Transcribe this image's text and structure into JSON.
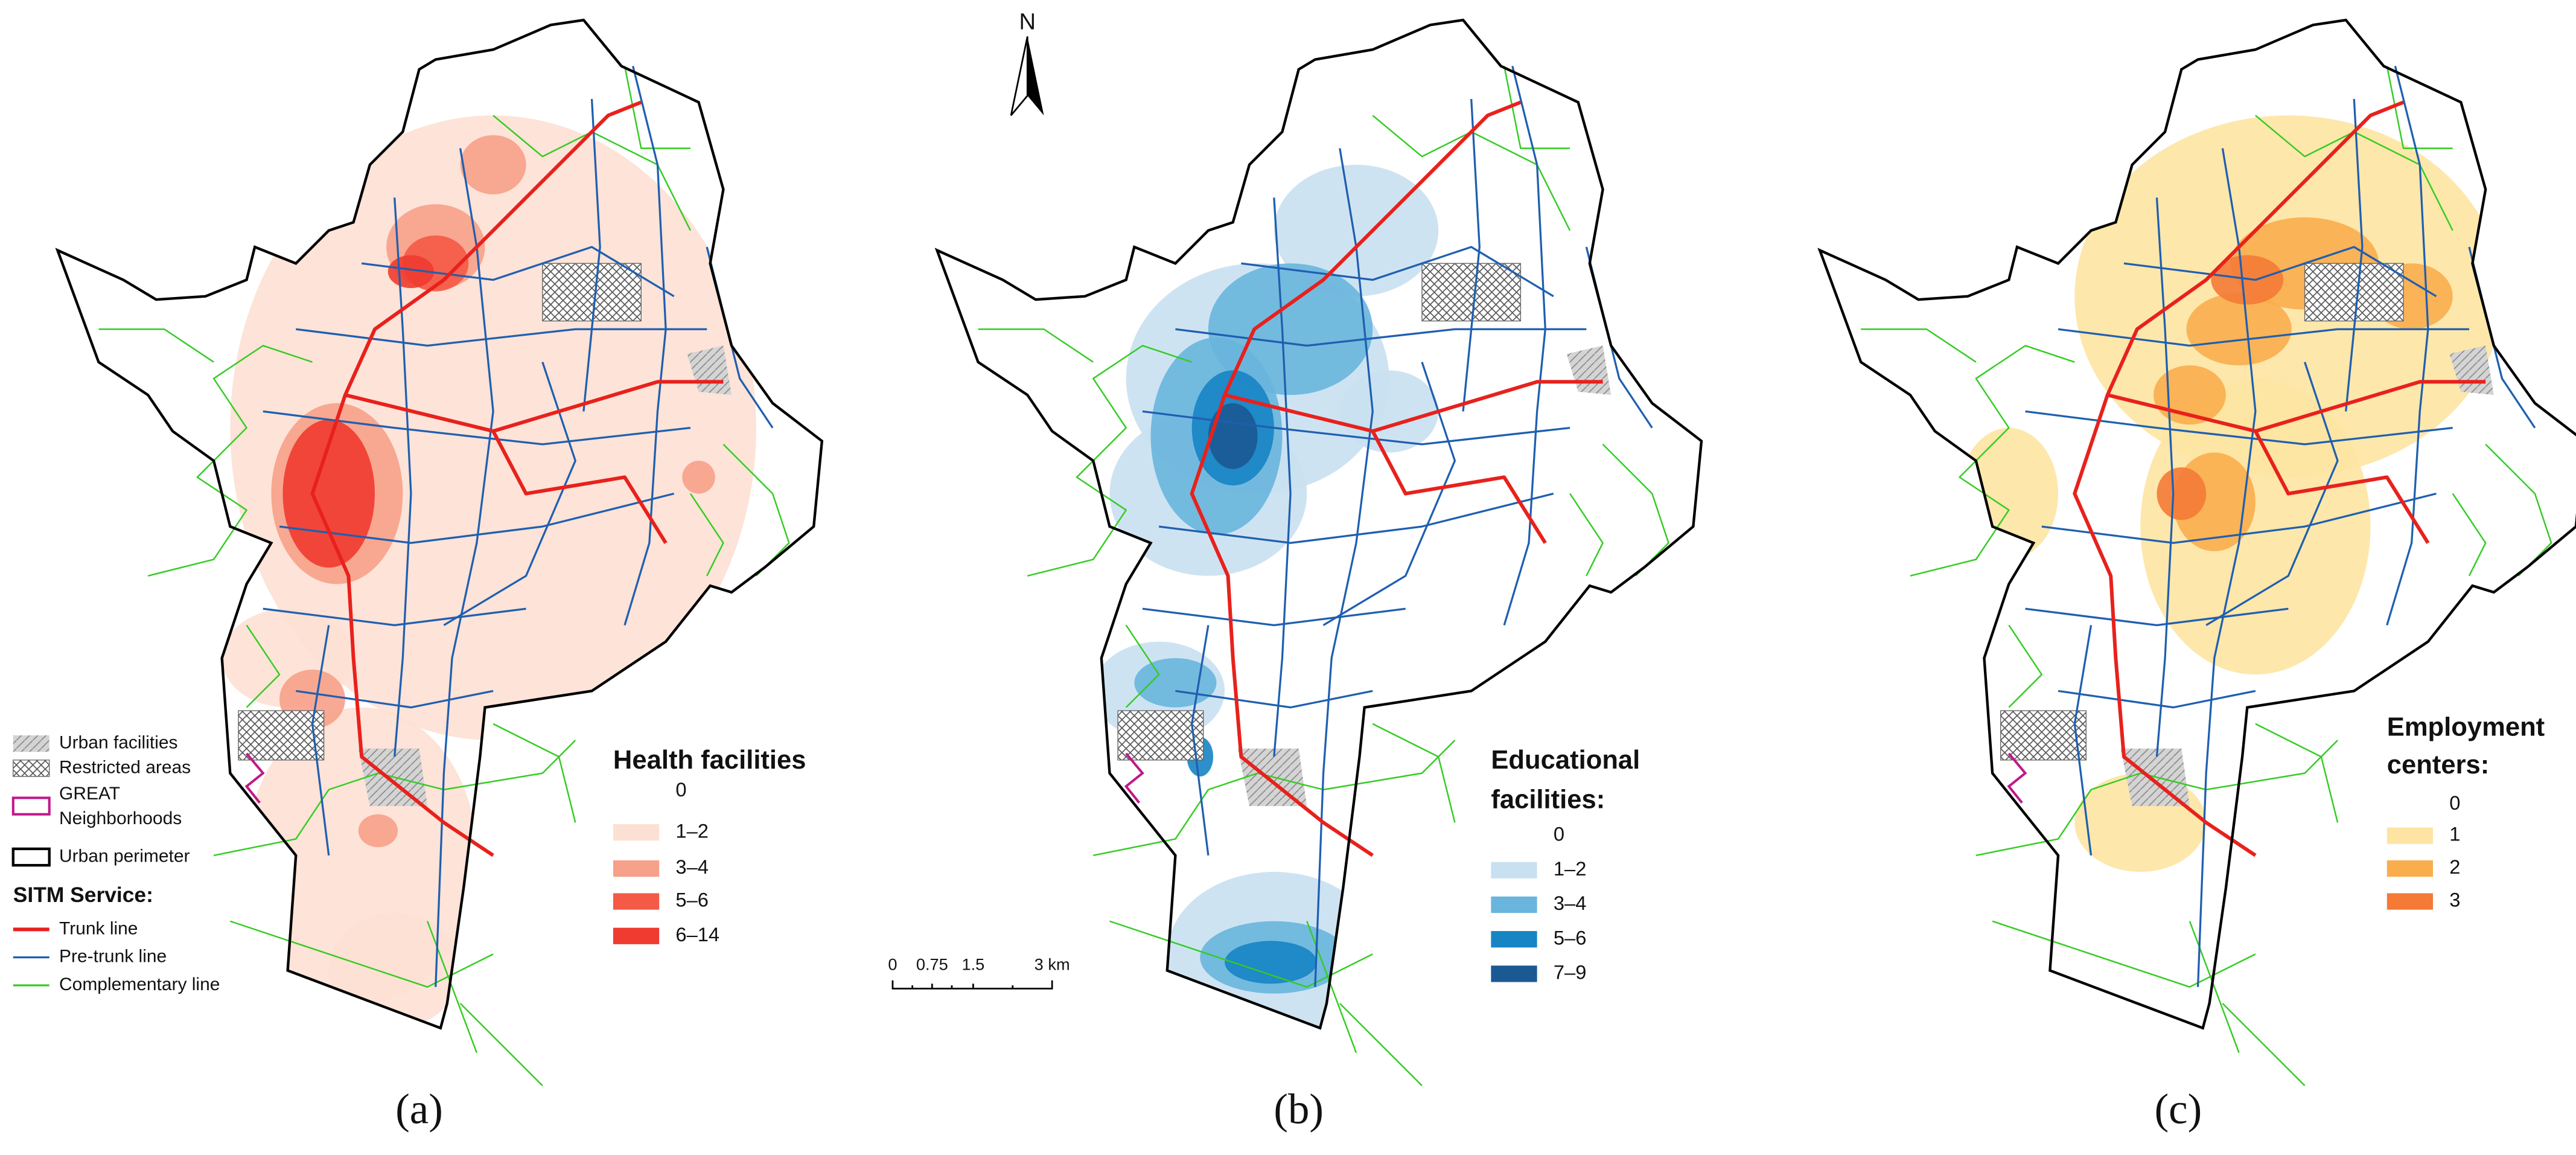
{
  "north_arrow": "N",
  "scale_bar": {
    "labels": [
      "0",
      "0.75",
      "1.5",
      "3 km"
    ]
  },
  "map_legend": {
    "items": [
      {
        "label": [
          "Urban facilities"
        ]
      },
      {
        "label": [
          "Restricted areas"
        ]
      },
      {
        "label": [
          "GREAT",
          "Neighborhoods"
        ]
      },
      {
        "label": [
          "Urban perimeter"
        ]
      }
    ],
    "service_title": "SITM Service:",
    "service_lines": [
      {
        "label": "Trunk line",
        "color": "#e8211c"
      },
      {
        "label": "Pre-trunk line",
        "color": "#1f5fb0"
      },
      {
        "label": "Complementary line",
        "color": "#33cc22"
      }
    ]
  },
  "panels": [
    {
      "label": "(a)",
      "legend_title": [
        "Health facilities"
      ],
      "classes": [
        {
          "label": "0",
          "color": "#ffffff"
        },
        {
          "label": "1–2",
          "color": "#fde0d4"
        },
        {
          "label": "3–4",
          "color": "#f7a08a"
        },
        {
          "label": "5–6",
          "color": "#f45a46"
        },
        {
          "label": "6–14",
          "color": "#ef3b30"
        }
      ]
    },
    {
      "label": "(b)",
      "legend_title": [
        "Educational",
        "facilities:"
      ],
      "classes": [
        {
          "label": "0",
          "color": "#ffffff"
        },
        {
          "label": "1–2",
          "color": "#c9e0f1"
        },
        {
          "label": "3–4",
          "color": "#69b5dd"
        },
        {
          "label": "5–6",
          "color": "#1784c4"
        },
        {
          "label": "7–9",
          "color": "#1b5993"
        }
      ]
    },
    {
      "label": "(c)",
      "legend_title": [
        "Employment",
        "centers:"
      ],
      "classes": [
        {
          "label": "0",
          "color": "#ffffff"
        },
        {
          "label": "1",
          "color": "#fde4a2"
        },
        {
          "label": "2",
          "color": "#f9ad4c"
        },
        {
          "label": "3",
          "color": "#f47a36"
        }
      ]
    }
  ]
}
